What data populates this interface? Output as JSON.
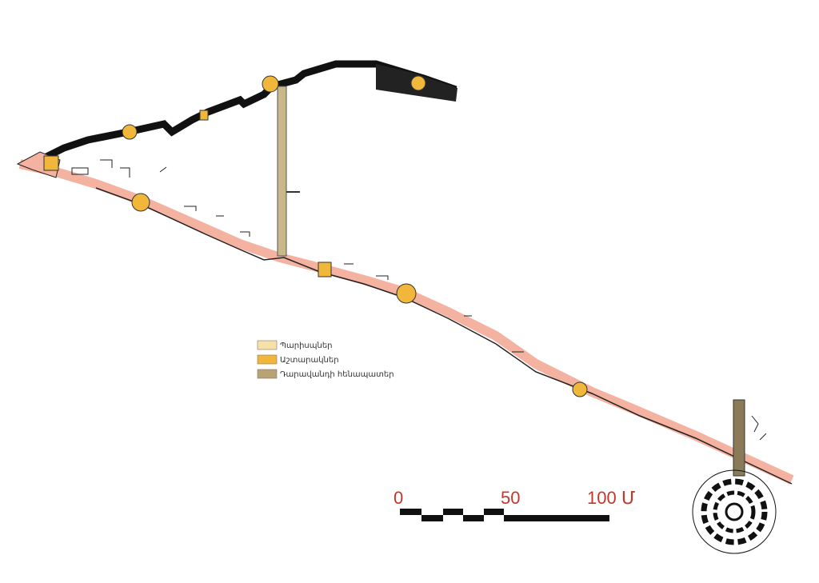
{
  "legend": {
    "items": [
      {
        "label": "Պարիսպներ",
        "color": "#f7e1a9"
      },
      {
        "label": "Աշտարակներ",
        "color": "#f0b73a"
      },
      {
        "label": "Դարավանդի հենապատեր",
        "color": "#b9a274"
      }
    ]
  },
  "scale": {
    "labels": [
      "0",
      "50",
      "100 Մ"
    ]
  }
}
